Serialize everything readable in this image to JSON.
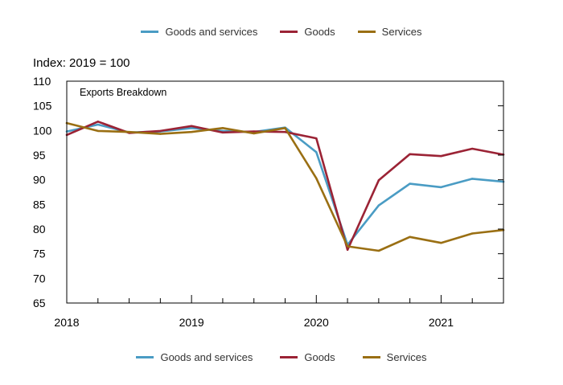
{
  "chart_data": {
    "type": "line",
    "title": "Exports Breakdown",
    "ylabel": "Index: 2019 = 100",
    "xlabel": "",
    "ylim": [
      65,
      110
    ],
    "yticks": [
      65,
      70,
      75,
      80,
      85,
      90,
      95,
      100,
      105,
      110
    ],
    "x_range": [
      2018.0,
      2021.5
    ],
    "xticks": [
      {
        "value": 2018,
        "label": "2018"
      },
      {
        "value": 2019,
        "label": "2019"
      },
      {
        "value": 2020,
        "label": "2020"
      },
      {
        "value": 2021,
        "label": "2021"
      }
    ],
    "x_minor_ticks": [
      2018.25,
      2018.5,
      2018.75,
      2019.25,
      2019.5,
      2019.75,
      2020.25,
      2020.5,
      2020.75,
      2021.25
    ],
    "x": [
      2018.0,
      2018.25,
      2018.5,
      2018.75,
      2019.0,
      2019.25,
      2019.5,
      2019.75,
      2020.0,
      2020.25,
      2020.5,
      2020.75,
      2021.0,
      2021.25,
      2021.5
    ],
    "series": [
      {
        "name": "Goods and services",
        "color": "#4a9cc4",
        "values": [
          99.8,
          101.2,
          99.6,
          99.8,
          100.5,
          99.9,
          99.7,
          100.6,
          95.6,
          76.8,
          84.8,
          89.2,
          88.5,
          90.2,
          89.6
        ]
      },
      {
        "name": "Goods",
        "color": "#9b2335",
        "values": [
          99.1,
          101.8,
          99.5,
          99.9,
          100.9,
          99.6,
          99.8,
          99.7,
          98.4,
          75.8,
          89.9,
          95.2,
          94.8,
          96.3,
          95.1
        ]
      },
      {
        "name": "Services",
        "color": "#9a6f13",
        "values": [
          101.5,
          99.9,
          99.7,
          99.3,
          99.7,
          100.5,
          99.4,
          100.5,
          90.3,
          76.5,
          75.6,
          78.4,
          77.2,
          79.1,
          79.8
        ]
      }
    ]
  }
}
